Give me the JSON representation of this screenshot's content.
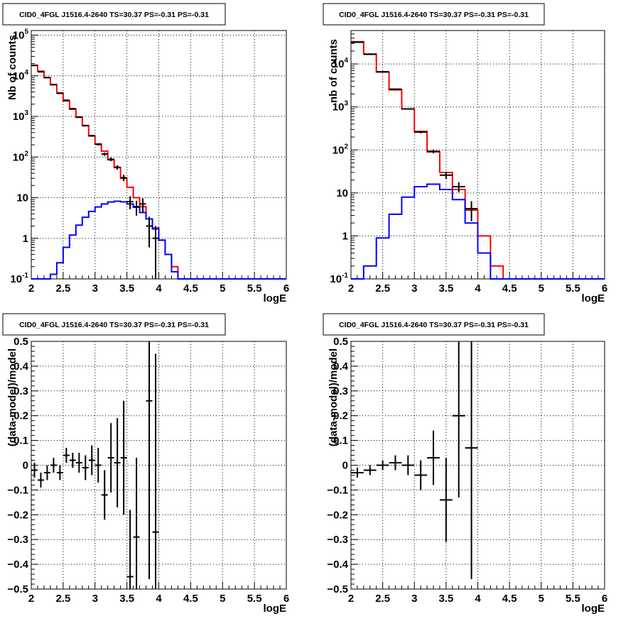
{
  "chart_data": [
    {
      "type": "histogram",
      "title": "CID0_4FGL J1516.4-2640 TS=30.37 PS=-0.31 PS=-0.31",
      "xlabel": "logE",
      "ylabel": "Nb of counts",
      "xlim": [
        2,
        6
      ],
      "ylim": [
        0.1,
        130000
      ],
      "yscale": "log",
      "grid": true,
      "x_ticks": [
        "2",
        "2.5",
        "3",
        "3.5",
        "4",
        "4.5",
        "5",
        "5.5",
        "6"
      ],
      "y_ticks": [
        {
          "value": 0.1,
          "base": "10",
          "exp": "-1"
        },
        {
          "value": 1,
          "base": "1",
          "exp": ""
        },
        {
          "value": 10,
          "base": "10",
          "exp": ""
        },
        {
          "value": 100,
          "base": "10",
          "exp": "2"
        },
        {
          "value": 1000,
          "base": "10",
          "exp": "3"
        },
        {
          "value": 10000,
          "base": "10",
          "exp": "4"
        },
        {
          "value": 100000,
          "base": "10",
          "exp": "5"
        }
      ],
      "bin_edges": [
        2.0,
        2.1,
        2.2,
        2.3,
        2.4,
        2.5,
        2.6,
        2.7,
        2.8,
        2.9,
        3.0,
        3.1,
        3.2,
        3.3,
        3.4,
        3.5,
        3.6,
        3.7,
        3.8,
        3.9,
        4.0,
        4.1,
        4.2,
        4.3,
        4.4,
        4.5,
        4.6,
        4.7,
        4.8,
        4.9,
        5.0,
        5.1,
        5.2,
        5.3,
        5.4,
        5.5,
        5.6,
        5.7,
        5.8,
        5.9,
        6.0
      ],
      "series": [
        {
          "color": "#ff0000",
          "style": "step",
          "values": [
            18000,
            13000,
            9000,
            6000,
            3800,
            2400,
            1500,
            950,
            600,
            330,
            210,
            140,
            85,
            55,
            30,
            18,
            10,
            6,
            3,
            1.8,
            0.9,
            0.4,
            0.2,
            0.1,
            0.1,
            0.1,
            0.1,
            0.1,
            0.1,
            0.1,
            0.1,
            0.1,
            0.1,
            0.1,
            0.1,
            0.1,
            0.1,
            0.1,
            0.1,
            0.1
          ]
        },
        {
          "color": "#0000ff",
          "style": "step",
          "values": [
            0.1,
            0.1,
            0.1,
            0.13,
            0.25,
            0.6,
            1.2,
            2.1,
            3.3,
            4.6,
            5.9,
            7.0,
            7.8,
            8.2,
            7.9,
            7.0,
            5.8,
            4.3,
            3.0,
            1.7,
            0.9,
            0.4,
            0.15,
            0.1,
            0.1,
            0.1,
            0.1,
            0.1,
            0.1,
            0.1,
            0.1,
            0.1,
            0.1,
            0.1,
            0.1,
            0.1,
            0.1,
            0.1,
            0.1,
            0.1
          ]
        },
        {
          "color": "#000000",
          "style": "errorbar",
          "x": [
            2.05,
            2.15,
            2.25,
            2.35,
            2.45,
            2.55,
            2.65,
            2.75,
            2.85,
            2.95,
            3.05,
            3.15,
            3.25,
            3.35,
            3.45,
            3.55,
            3.65,
            3.75,
            3.85,
            3.95
          ],
          "values": [
            18000,
            12500,
            9000,
            6100,
            3700,
            2500,
            1550,
            960,
            590,
            335,
            205,
            118,
            88,
            56,
            31,
            8,
            6,
            7,
            2,
            1
          ],
          "yerr": [
            130,
            110,
            95,
            78,
            60,
            50,
            39,
            31,
            24,
            18,
            14,
            11,
            9,
            7,
            5.5,
            2.8,
            2.4,
            2.6,
            1.4,
            1.0
          ]
        }
      ]
    },
    {
      "type": "histogram",
      "title": "CID0_4FGL J1516.4-2640 TS=30.37 PS=-0.31 PS=-0.31",
      "xlabel": "logE",
      "ylabel": "nb of counts",
      "xlim": [
        2,
        6
      ],
      "ylim": [
        0.1,
        60000
      ],
      "yscale": "log",
      "grid": true,
      "x_ticks": [
        "2",
        "2.5",
        "3",
        "3.5",
        "4",
        "4.5",
        "5",
        "5.5",
        "6"
      ],
      "y_ticks": [
        {
          "value": 0.1,
          "base": "10",
          "exp": "-1"
        },
        {
          "value": 1,
          "base": "1",
          "exp": ""
        },
        {
          "value": 10,
          "base": "10",
          "exp": ""
        },
        {
          "value": 100,
          "base": "10",
          "exp": "2"
        },
        {
          "value": 1000,
          "base": "10",
          "exp": "3"
        },
        {
          "value": 10000,
          "base": "10",
          "exp": "4"
        }
      ],
      "bin_edges": [
        2.0,
        2.2,
        2.4,
        2.6,
        2.8,
        3.0,
        3.2,
        3.4,
        3.6,
        3.8,
        4.0,
        4.2,
        4.4,
        4.6,
        4.8,
        5.0,
        5.2,
        5.4,
        5.6,
        5.8,
        6.0
      ],
      "series": [
        {
          "color": "#ff0000",
          "style": "step",
          "values": [
            33000,
            17000,
            6500,
            2500,
            900,
            270,
            90,
            30,
            12,
            4,
            1,
            0.2,
            0.1,
            0.1,
            0.1,
            0.1,
            0.1,
            0.1,
            0.1,
            0.1
          ]
        },
        {
          "color": "#0000ff",
          "style": "step",
          "values": [
            0.1,
            0.2,
            0.9,
            3.2,
            8,
            14,
            16,
            12,
            7,
            2,
            0.4,
            0.1,
            0.1,
            0.1,
            0.1,
            0.1,
            0.1,
            0.1,
            0.1,
            0.1
          ]
        },
        {
          "color": "#000000",
          "style": "errorbar",
          "x": [
            2.1,
            2.3,
            2.5,
            2.7,
            2.9,
            3.1,
            3.3,
            3.5,
            3.7,
            3.9
          ],
          "values": [
            32000,
            16800,
            6600,
            2600,
            900,
            260,
            93,
            26,
            14,
            4.3
          ],
          "yerr": [
            180,
            130,
            81,
            51,
            30,
            16,
            9.6,
            5.1,
            3.7,
            2.1
          ]
        }
      ]
    },
    {
      "type": "errorbar",
      "title": "CID0_4FGL J1516.4-2640 TS=30.37 PS=-0.31 PS=-0.31",
      "xlabel": "logE",
      "ylabel": "(data-model)/model",
      "xlim": [
        2,
        6
      ],
      "ylim": [
        -0.5,
        0.5
      ],
      "grid": true,
      "x_ticks": [
        "2",
        "2.5",
        "3",
        "3.5",
        "4",
        "4.5",
        "5",
        "5.5",
        "6"
      ],
      "y_ticks": [
        "−0.5",
        "−0.4",
        "−0.3",
        "−0.2",
        "−0.1",
        "0",
        "0.1",
        "0.2",
        "0.3",
        "0.4",
        "0.5"
      ],
      "series": [
        {
          "color": "#000000",
          "x": [
            2.05,
            2.15,
            2.25,
            2.35,
            2.45,
            2.55,
            2.65,
            2.75,
            2.85,
            2.95,
            3.05,
            3.15,
            3.25,
            3.35,
            3.45,
            3.55,
            3.65,
            3.85,
            3.95
          ],
          "values": [
            -0.02,
            -0.06,
            -0.03,
            0.0,
            -0.03,
            0.04,
            0.02,
            0.01,
            -0.01,
            0.02,
            0.0,
            -0.12,
            0.03,
            0.01,
            0.03,
            -0.45,
            -0.29,
            0.26,
            -0.27
          ],
          "yerr": [
            0.03,
            0.03,
            0.03,
            0.03,
            0.03,
            0.03,
            0.03,
            0.04,
            0.05,
            0.06,
            0.07,
            0.1,
            0.14,
            0.18,
            0.23,
            0.27,
            0.32,
            0.72,
            0.72
          ]
        }
      ]
    },
    {
      "type": "errorbar",
      "title": "CID0_4FGL J1516.4-2640 TS=30.37 PS=-0.31 PS=-0.31",
      "xlabel": "logE",
      "ylabel": "(data-model)/model",
      "xlim": [
        2,
        6
      ],
      "ylim": [
        -0.5,
        0.5
      ],
      "grid": true,
      "x_ticks": [
        "2",
        "2.5",
        "3",
        "3.5",
        "4",
        "4.5",
        "5",
        "5.5",
        "6"
      ],
      "y_ticks": [
        "−0.5",
        "−0.4",
        "−0.3",
        "−0.2",
        "−0.1",
        "0",
        "0.1",
        "0.2",
        "0.3",
        "0.4",
        "0.5"
      ],
      "series": [
        {
          "color": "#000000",
          "x": [
            2.1,
            2.3,
            2.5,
            2.7,
            2.9,
            3.1,
            3.3,
            3.5,
            3.7,
            3.9
          ],
          "values": [
            -0.03,
            -0.02,
            0.0,
            0.01,
            0.0,
            -0.04,
            0.03,
            -0.14,
            0.2,
            0.07
          ],
          "yerr": [
            0.02,
            0.02,
            0.02,
            0.03,
            0.04,
            0.06,
            0.11,
            0.17,
            0.33,
            0.53
          ]
        }
      ]
    }
  ]
}
